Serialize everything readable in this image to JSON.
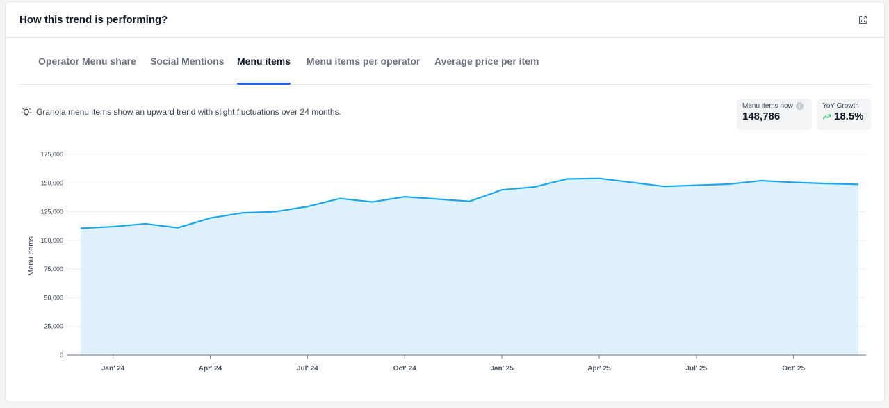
{
  "card": {
    "title": "How this trend is performing?",
    "export_icon": "chart-export-icon"
  },
  "tabs": [
    {
      "label": "Operator Menu share",
      "active": false
    },
    {
      "label": "Social Mentions",
      "active": false
    },
    {
      "label": "Menu items",
      "active": true
    },
    {
      "label": "Menu items per operator",
      "active": false
    },
    {
      "label": "Average price per item",
      "active": false
    }
  ],
  "insight": {
    "icon": "lightbulb-icon",
    "text": "Granola menu items show an upward trend with slight fluctuations over 24 months."
  },
  "stats": {
    "menu_items_now": {
      "label": "Menu items now",
      "value": "148,786",
      "info_icon": "info-icon"
    },
    "yoy_growth": {
      "label": "YoY Growth",
      "value": "18.5%",
      "trend_icon": "trend-up-icon"
    }
  },
  "colors": {
    "accent": "#2563eb",
    "line": "#1aa7f0",
    "area": "#dff2fc",
    "growth": "#22c55e"
  },
  "chart_data": {
    "type": "area",
    "title": "",
    "xlabel": "",
    "ylabel": "Menu items",
    "ylim": [
      0,
      175000
    ],
    "yticks": [
      0,
      25000,
      50000,
      75000,
      100000,
      125000,
      150000,
      175000
    ],
    "ytick_labels": [
      "0",
      "25,000",
      "50,000",
      "75,000",
      "100,000",
      "125,000",
      "150,000",
      "175,000"
    ],
    "x_tick_labels": [
      "Jan' 24",
      "Apr' 24",
      "Jul' 24",
      "Oct' 24",
      "Jan' 25",
      "Apr' 25",
      "Jul' 25",
      "Oct' 25"
    ],
    "x_tick_month_index": [
      1,
      4,
      7,
      10,
      13,
      16,
      19,
      22
    ],
    "grid": true,
    "series": [
      {
        "values": [
          110500,
          112000,
          114500,
          111000,
          119500,
          124000,
          125000,
          129500,
          136500,
          133500,
          138000,
          136000,
          134000,
          144000,
          146500,
          153500,
          154000,
          150500,
          147000,
          148000,
          149000,
          152000,
          150500,
          149500,
          148786
        ]
      }
    ]
  }
}
